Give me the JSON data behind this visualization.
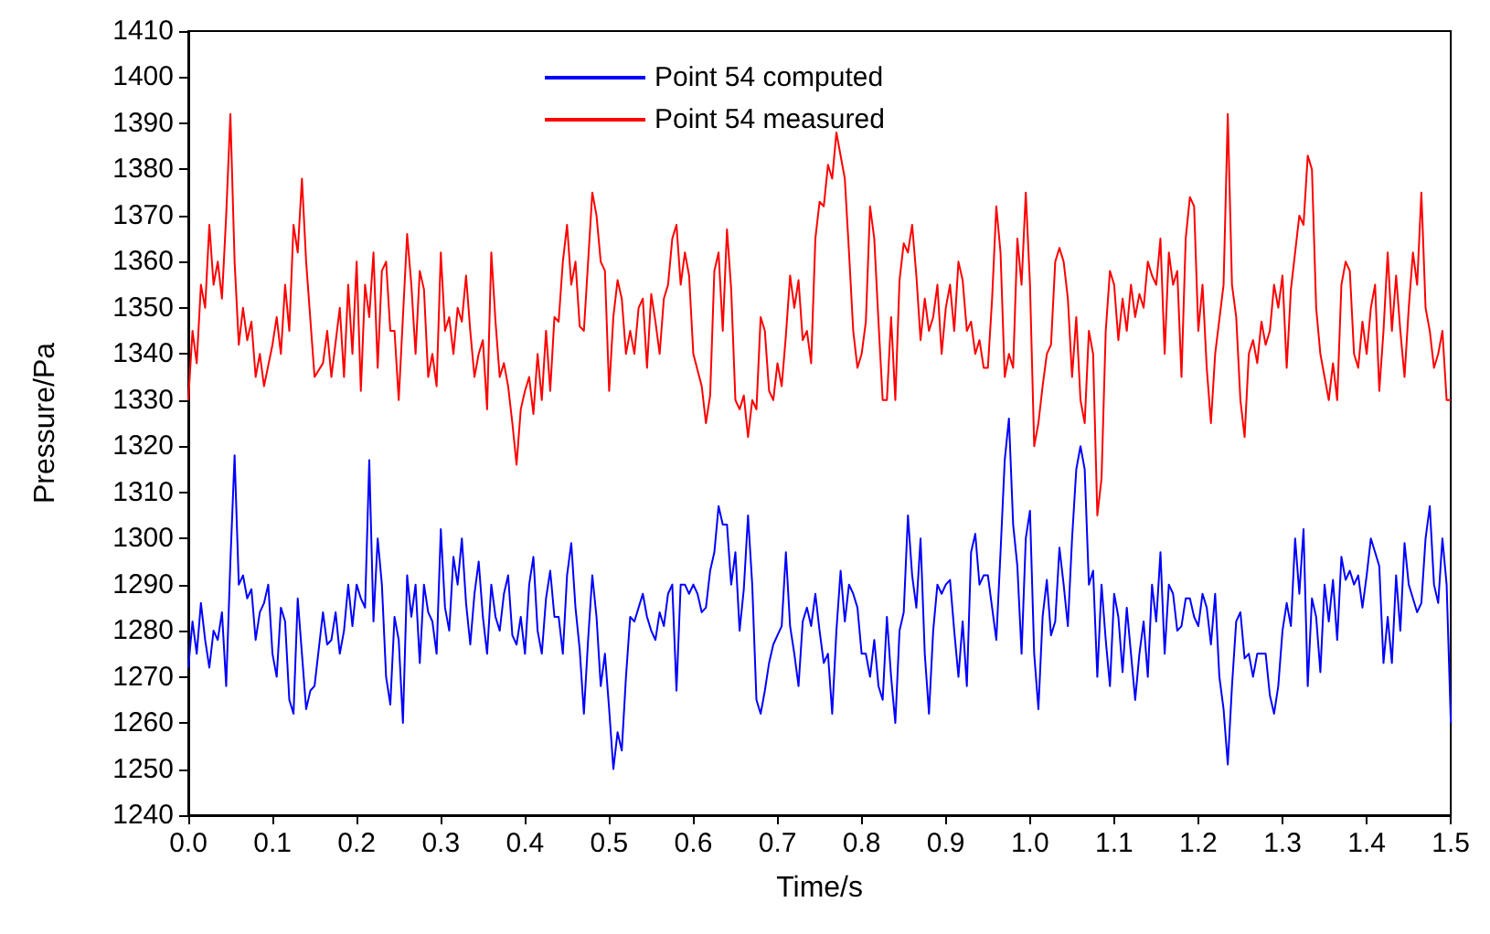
{
  "chart_data": {
    "type": "line",
    "xlabel": "Time/s",
    "ylabel": "Pressure/Pa",
    "xlim": [
      0,
      1.5
    ],
    "ylim": [
      1240,
      1410
    ],
    "xticks": [
      {
        "value": 0,
        "label": "0.0"
      },
      0.1,
      0.2,
      0.3,
      0.4,
      0.5,
      0.6,
      0.7,
      0.8,
      0.9,
      {
        "value": 1,
        "label": "1.0"
      },
      1.1,
      1.2,
      1.3,
      1.4,
      1.5
    ],
    "yticks": [
      1240,
      1250,
      1260,
      1270,
      1280,
      1290,
      1300,
      1310,
      1320,
      1330,
      1340,
      1350,
      1360,
      1370,
      1380,
      1390,
      1400,
      1410
    ],
    "grid": false,
    "legend": "top",
    "marker": "none",
    "series": [
      {
        "name": "Point 54 computed",
        "color": "#0000ff",
        "x": [
          0,
          0.005,
          0.01,
          0.015,
          0.02,
          0.025,
          0.03,
          0.035,
          0.04,
          0.045,
          0.05,
          0.055,
          0.06,
          0.065,
          0.07,
          0.075,
          0.08,
          0.085,
          0.09,
          0.095,
          0.1,
          0.105,
          0.11,
          0.115,
          0.12,
          0.125,
          0.13,
          0.135,
          0.14,
          0.145,
          0.15,
          0.16,
          0.165,
          0.17,
          0.175,
          0.18,
          0.185,
          0.19,
          0.195,
          0.2,
          0.205,
          0.21,
          0.215,
          0.22,
          0.225,
          0.23,
          0.235,
          0.24,
          0.245,
          0.25,
          0.255,
          0.26,
          0.265,
          0.27,
          0.275,
          0.28,
          0.285,
          0.29,
          0.295,
          0.3,
          0.305,
          0.31,
          0.315,
          0.32,
          0.325,
          0.33,
          0.335,
          0.34,
          0.345,
          0.35,
          0.355,
          0.36,
          0.365,
          0.37,
          0.375,
          0.38,
          0.385,
          0.39,
          0.395,
          0.4,
          0.405,
          0.41,
          0.415,
          0.42,
          0.425,
          0.43,
          0.435,
          0.44,
          0.445,
          0.45,
          0.455,
          0.46,
          0.465,
          0.47,
          0.475,
          0.48,
          0.485,
          0.49,
          0.495,
          0.5,
          0.505,
          0.51,
          0.515,
          0.52,
          0.525,
          0.53,
          0.535,
          0.54,
          0.545,
          0.55,
          0.555,
          0.56,
          0.565,
          0.57,
          0.575,
          0.58,
          0.585,
          0.59,
          0.595,
          0.6,
          0.605,
          0.61,
          0.615,
          0.62,
          0.625,
          0.63,
          0.635,
          0.64,
          0.645,
          0.65,
          0.655,
          0.66,
          0.665,
          0.67,
          0.675,
          0.68,
          0.685,
          0.69,
          0.695,
          0.7,
          0.705,
          0.71,
          0.715,
          0.72,
          0.725,
          0.73,
          0.735,
          0.74,
          0.745,
          0.75,
          0.755,
          0.76,
          0.765,
          0.77,
          0.775,
          0.78,
          0.785,
          0.79,
          0.795,
          0.8,
          0.805,
          0.81,
          0.815,
          0.82,
          0.825,
          0.83,
          0.835,
          0.84,
          0.845,
          0.85,
          0.855,
          0.86,
          0.865,
          0.87,
          0.875,
          0.88,
          0.885,
          0.89,
          0.895,
          0.9,
          0.905,
          0.91,
          0.915,
          0.92,
          0.925,
          0.93,
          0.935,
          0.94,
          0.945,
          0.95,
          0.955,
          0.96,
          0.965,
          0.97,
          0.975,
          0.98,
          0.985,
          0.99,
          0.995,
          1,
          1.005,
          1.01,
          1.015,
          1.02,
          1.025,
          1.03,
          1.035,
          1.04,
          1.045,
          1.05,
          1.055,
          1.06,
          1.065,
          1.07,
          1.075,
          1.08,
          1.085,
          1.09,
          1.095,
          1.1,
          1.105,
          1.11,
          1.115,
          1.12,
          1.125,
          1.13,
          1.135,
          1.14,
          1.145,
          1.15,
          1.155,
          1.16,
          1.165,
          1.17,
          1.175,
          1.18,
          1.185,
          1.19,
          1.195,
          1.2,
          1.205,
          1.21,
          1.215,
          1.22,
          1.225,
          1.23,
          1.235,
          1.24,
          1.245,
          1.25,
          1.255,
          1.26,
          1.265,
          1.27,
          1.28,
          1.285,
          1.29,
          1.295,
          1.3,
          1.305,
          1.31,
          1.315,
          1.32,
          1.325,
          1.33,
          1.335,
          1.34,
          1.345,
          1.35,
          1.355,
          1.36,
          1.365,
          1.37,
          1.375,
          1.38,
          1.385,
          1.39,
          1.395,
          1.4,
          1.405,
          1.41,
          1.415,
          1.42,
          1.425,
          1.43,
          1.435,
          1.44,
          1.445,
          1.45,
          1.455,
          1.46,
          1.465,
          1.47,
          1.475,
          1.48,
          1.485,
          1.49,
          1.495,
          1.5
        ],
        "values": [
          1272,
          1282,
          1275,
          1286,
          1278,
          1272,
          1280,
          1278,
          1284,
          1268,
          1295,
          1318,
          1290,
          1292,
          1287,
          1289,
          1278,
          1284,
          1286,
          1290,
          1275,
          1270,
          1285,
          1282,
          1265,
          1262,
          1287,
          1275,
          1263,
          1267,
          1268,
          1284,
          1277,
          1278,
          1284,
          1275,
          1280,
          1290,
          1281,
          1290,
          1287,
          1285,
          1317,
          1282,
          1300,
          1290,
          1270,
          1264,
          1283,
          1278,
          1260,
          1292,
          1283,
          1290,
          1273,
          1290,
          1284,
          1282,
          1275,
          1302,
          1285,
          1280,
          1296,
          1290,
          1300,
          1286,
          1277,
          1288,
          1295,
          1283,
          1275,
          1290,
          1283,
          1280,
          1288,
          1292,
          1279,
          1277,
          1283,
          1275,
          1290,
          1296,
          1280,
          1275,
          1287,
          1293,
          1283,
          1283,
          1275,
          1292,
          1299,
          1285,
          1276,
          1262,
          1278,
          1292,
          1283,
          1268,
          1275,
          1263,
          1250,
          1258,
          1254,
          1270,
          1283,
          1282,
          1285,
          1288,
          1283,
          1280,
          1278,
          1284,
          1281,
          1288,
          1290,
          1267,
          1290,
          1290,
          1288,
          1290,
          1288,
          1284,
          1285,
          1293,
          1297,
          1307,
          1303,
          1303,
          1290,
          1297,
          1280,
          1289,
          1305,
          1290,
          1265,
          1262,
          1267,
          1273,
          1277,
          1279,
          1281,
          1297,
          1281,
          1275,
          1268,
          1282,
          1285,
          1281,
          1288,
          1280,
          1273,
          1275,
          1262,
          1280,
          1293,
          1282,
          1290,
          1288,
          1285,
          1275,
          1275,
          1270,
          1278,
          1268,
          1265,
          1283,
          1270,
          1260,
          1280,
          1284,
          1305,
          1292,
          1285,
          1300,
          1275,
          1262,
          1280,
          1290,
          1288,
          1290,
          1291,
          1280,
          1270,
          1282,
          1268,
          1297,
          1301,
          1290,
          1292,
          1292,
          1285,
          1278,
          1297,
          1317,
          1326,
          1303,
          1294,
          1275,
          1300,
          1306,
          1275,
          1263,
          1283,
          1291,
          1279,
          1282,
          1298,
          1290,
          1281,
          1300,
          1315,
          1320,
          1315,
          1290,
          1293,
          1270,
          1290,
          1278,
          1268,
          1288,
          1283,
          1271,
          1285,
          1275,
          1265,
          1275,
          1282,
          1270,
          1290,
          1282,
          1297,
          1275,
          1290,
          1288,
          1280,
          1281,
          1287,
          1287,
          1283,
          1281,
          1288,
          1285,
          1277,
          1288,
          1270,
          1263,
          1251,
          1268,
          1282,
          1284,
          1274,
          1275,
          1270,
          1275,
          1275,
          1266,
          1262,
          1268,
          1280,
          1286,
          1281,
          1300,
          1288,
          1302,
          1268,
          1287,
          1283,
          1271,
          1290,
          1282,
          1291,
          1278,
          1296,
          1291,
          1293,
          1290,
          1292,
          1285,
          1292,
          1300,
          1297,
          1294,
          1273,
          1283,
          1273,
          1292,
          1280,
          1299,
          1290,
          1287,
          1284,
          1286,
          1300,
          1307,
          1290,
          1286,
          1300,
          1290,
          1260
        ]
      },
      {
        "name": "Point 54 measured",
        "color": "#ff0000",
        "x": [
          0,
          0.005,
          0.01,
          0.015,
          0.02,
          0.025,
          0.03,
          0.035,
          0.04,
          0.045,
          0.05,
          0.055,
          0.06,
          0.065,
          0.07,
          0.075,
          0.08,
          0.085,
          0.09,
          0.1,
          0.105,
          0.11,
          0.115,
          0.12,
          0.125,
          0.13,
          0.135,
          0.14,
          0.15,
          0.16,
          0.165,
          0.17,
          0.18,
          0.185,
          0.19,
          0.195,
          0.2,
          0.205,
          0.21,
          0.215,
          0.22,
          0.225,
          0.23,
          0.235,
          0.24,
          0.245,
          0.25,
          0.26,
          0.265,
          0.27,
          0.275,
          0.28,
          0.285,
          0.29,
          0.295,
          0.3,
          0.305,
          0.31,
          0.315,
          0.32,
          0.325,
          0.33,
          0.335,
          0.34,
          0.345,
          0.35,
          0.355,
          0.36,
          0.365,
          0.37,
          0.375,
          0.38,
          0.385,
          0.39,
          0.395,
          0.4,
          0.405,
          0.41,
          0.415,
          0.42,
          0.425,
          0.43,
          0.435,
          0.44,
          0.445,
          0.45,
          0.455,
          0.46,
          0.465,
          0.47,
          0.48,
          0.485,
          0.49,
          0.495,
          0.5,
          0.505,
          0.51,
          0.515,
          0.52,
          0.525,
          0.53,
          0.535,
          0.54,
          0.545,
          0.55,
          0.555,
          0.56,
          0.565,
          0.57,
          0.575,
          0.58,
          0.585,
          0.59,
          0.595,
          0.6,
          0.61,
          0.615,
          0.62,
          0.625,
          0.63,
          0.635,
          0.64,
          0.645,
          0.65,
          0.655,
          0.66,
          0.665,
          0.67,
          0.675,
          0.68,
          0.685,
          0.69,
          0.695,
          0.7,
          0.705,
          0.71,
          0.715,
          0.72,
          0.725,
          0.73,
          0.735,
          0.74,
          0.745,
          0.75,
          0.755,
          0.76,
          0.765,
          0.77,
          0.78,
          0.785,
          0.79,
          0.795,
          0.8,
          0.805,
          0.81,
          0.815,
          0.82,
          0.825,
          0.83,
          0.835,
          0.84,
          0.845,
          0.85,
          0.855,
          0.86,
          0.865,
          0.87,
          0.875,
          0.88,
          0.885,
          0.89,
          0.895,
          0.9,
          0.905,
          0.91,
          0.915,
          0.92,
          0.925,
          0.93,
          0.935,
          0.94,
          0.945,
          0.95,
          0.955,
          0.96,
          0.965,
          0.97,
          0.975,
          0.98,
          0.985,
          0.99,
          0.995,
          1,
          1.005,
          1.01,
          1.015,
          1.02,
          1.025,
          1.03,
          1.035,
          1.04,
          1.045,
          1.05,
          1.055,
          1.06,
          1.065,
          1.07,
          1.075,
          1.08,
          1.085,
          1.09,
          1.095,
          1.1,
          1.105,
          1.11,
          1.115,
          1.12,
          1.125,
          1.13,
          1.135,
          1.14,
          1.145,
          1.15,
          1.155,
          1.16,
          1.165,
          1.17,
          1.175,
          1.18,
          1.185,
          1.19,
          1.195,
          1.2,
          1.205,
          1.21,
          1.215,
          1.22,
          1.23,
          1.235,
          1.24,
          1.245,
          1.25,
          1.255,
          1.26,
          1.265,
          1.27,
          1.275,
          1.28,
          1.285,
          1.29,
          1.295,
          1.3,
          1.305,
          1.31,
          1.32,
          1.325,
          1.33,
          1.335,
          1.34,
          1.345,
          1.35,
          1.355,
          1.36,
          1.365,
          1.37,
          1.375,
          1.38,
          1.385,
          1.39,
          1.395,
          1.4,
          1.405,
          1.41,
          1.415,
          1.42,
          1.425,
          1.43,
          1.435,
          1.44,
          1.445,
          1.45,
          1.455,
          1.46,
          1.465,
          1.47,
          1.475,
          1.48,
          1.485,
          1.49,
          1.495,
          1.5
        ],
        "values": [
          1330,
          1345,
          1338,
          1355,
          1350,
          1368,
          1355,
          1360,
          1352,
          1370,
          1392,
          1360,
          1342,
          1350,
          1343,
          1347,
          1335,
          1340,
          1333,
          1342,
          1348,
          1340,
          1355,
          1345,
          1368,
          1362,
          1378,
          1360,
          1335,
          1338,
          1345,
          1335,
          1350,
          1335,
          1355,
          1340,
          1360,
          1332,
          1355,
          1348,
          1362,
          1337,
          1358,
          1360,
          1345,
          1345,
          1330,
          1366,
          1355,
          1340,
          1358,
          1354,
          1335,
          1340,
          1333,
          1362,
          1345,
          1348,
          1340,
          1350,
          1347,
          1357,
          1345,
          1335,
          1340,
          1343,
          1328,
          1362,
          1347,
          1335,
          1338,
          1333,
          1325,
          1316,
          1328,
          1332,
          1335,
          1327,
          1340,
          1330,
          1345,
          1332,
          1348,
          1347,
          1360,
          1368,
          1355,
          1360,
          1346,
          1345,
          1375,
          1370,
          1360,
          1358,
          1332,
          1348,
          1356,
          1352,
          1340,
          1345,
          1340,
          1350,
          1352,
          1337,
          1353,
          1347,
          1340,
          1352,
          1355,
          1365,
          1368,
          1355,
          1362,
          1357,
          1340,
          1333,
          1325,
          1331,
          1358,
          1362,
          1345,
          1367,
          1354,
          1330,
          1328,
          1331,
          1322,
          1330,
          1328,
          1348,
          1345,
          1332,
          1330,
          1338,
          1333,
          1344,
          1357,
          1350,
          1356,
          1343,
          1345,
          1338,
          1365,
          1373,
          1372,
          1381,
          1378,
          1388,
          1378,
          1362,
          1345,
          1337,
          1340,
          1347,
          1372,
          1365,
          1347,
          1330,
          1330,
          1348,
          1330,
          1356,
          1364,
          1362,
          1368,
          1357,
          1343,
          1352,
          1345,
          1348,
          1355,
          1340,
          1350,
          1355,
          1345,
          1360,
          1356,
          1345,
          1347,
          1340,
          1343,
          1337,
          1337,
          1352,
          1372,
          1362,
          1335,
          1340,
          1337,
          1365,
          1355,
          1375,
          1355,
          1320,
          1325,
          1333,
          1340,
          1342,
          1360,
          1363,
          1360,
          1352,
          1335,
          1348,
          1330,
          1325,
          1345,
          1340,
          1305,
          1313,
          1345,
          1358,
          1355,
          1343,
          1352,
          1345,
          1355,
          1348,
          1353,
          1350,
          1360,
          1357,
          1355,
          1365,
          1340,
          1362,
          1355,
          1358,
          1335,
          1365,
          1374,
          1372,
          1345,
          1355,
          1337,
          1325,
          1340,
          1355,
          1392,
          1355,
          1348,
          1330,
          1322,
          1340,
          1343,
          1338,
          1347,
          1342,
          1345,
          1355,
          1350,
          1357,
          1337,
          1354,
          1370,
          1368,
          1383,
          1380,
          1350,
          1340,
          1335,
          1330,
          1338,
          1330,
          1355,
          1360,
          1358,
          1340,
          1337,
          1347,
          1340,
          1350,
          1355,
          1332,
          1345,
          1362,
          1345,
          1357,
          1345,
          1335,
          1350,
          1362,
          1355,
          1375,
          1350,
          1345,
          1337,
          1340,
          1345,
          1330,
          1330
        ]
      }
    ]
  }
}
